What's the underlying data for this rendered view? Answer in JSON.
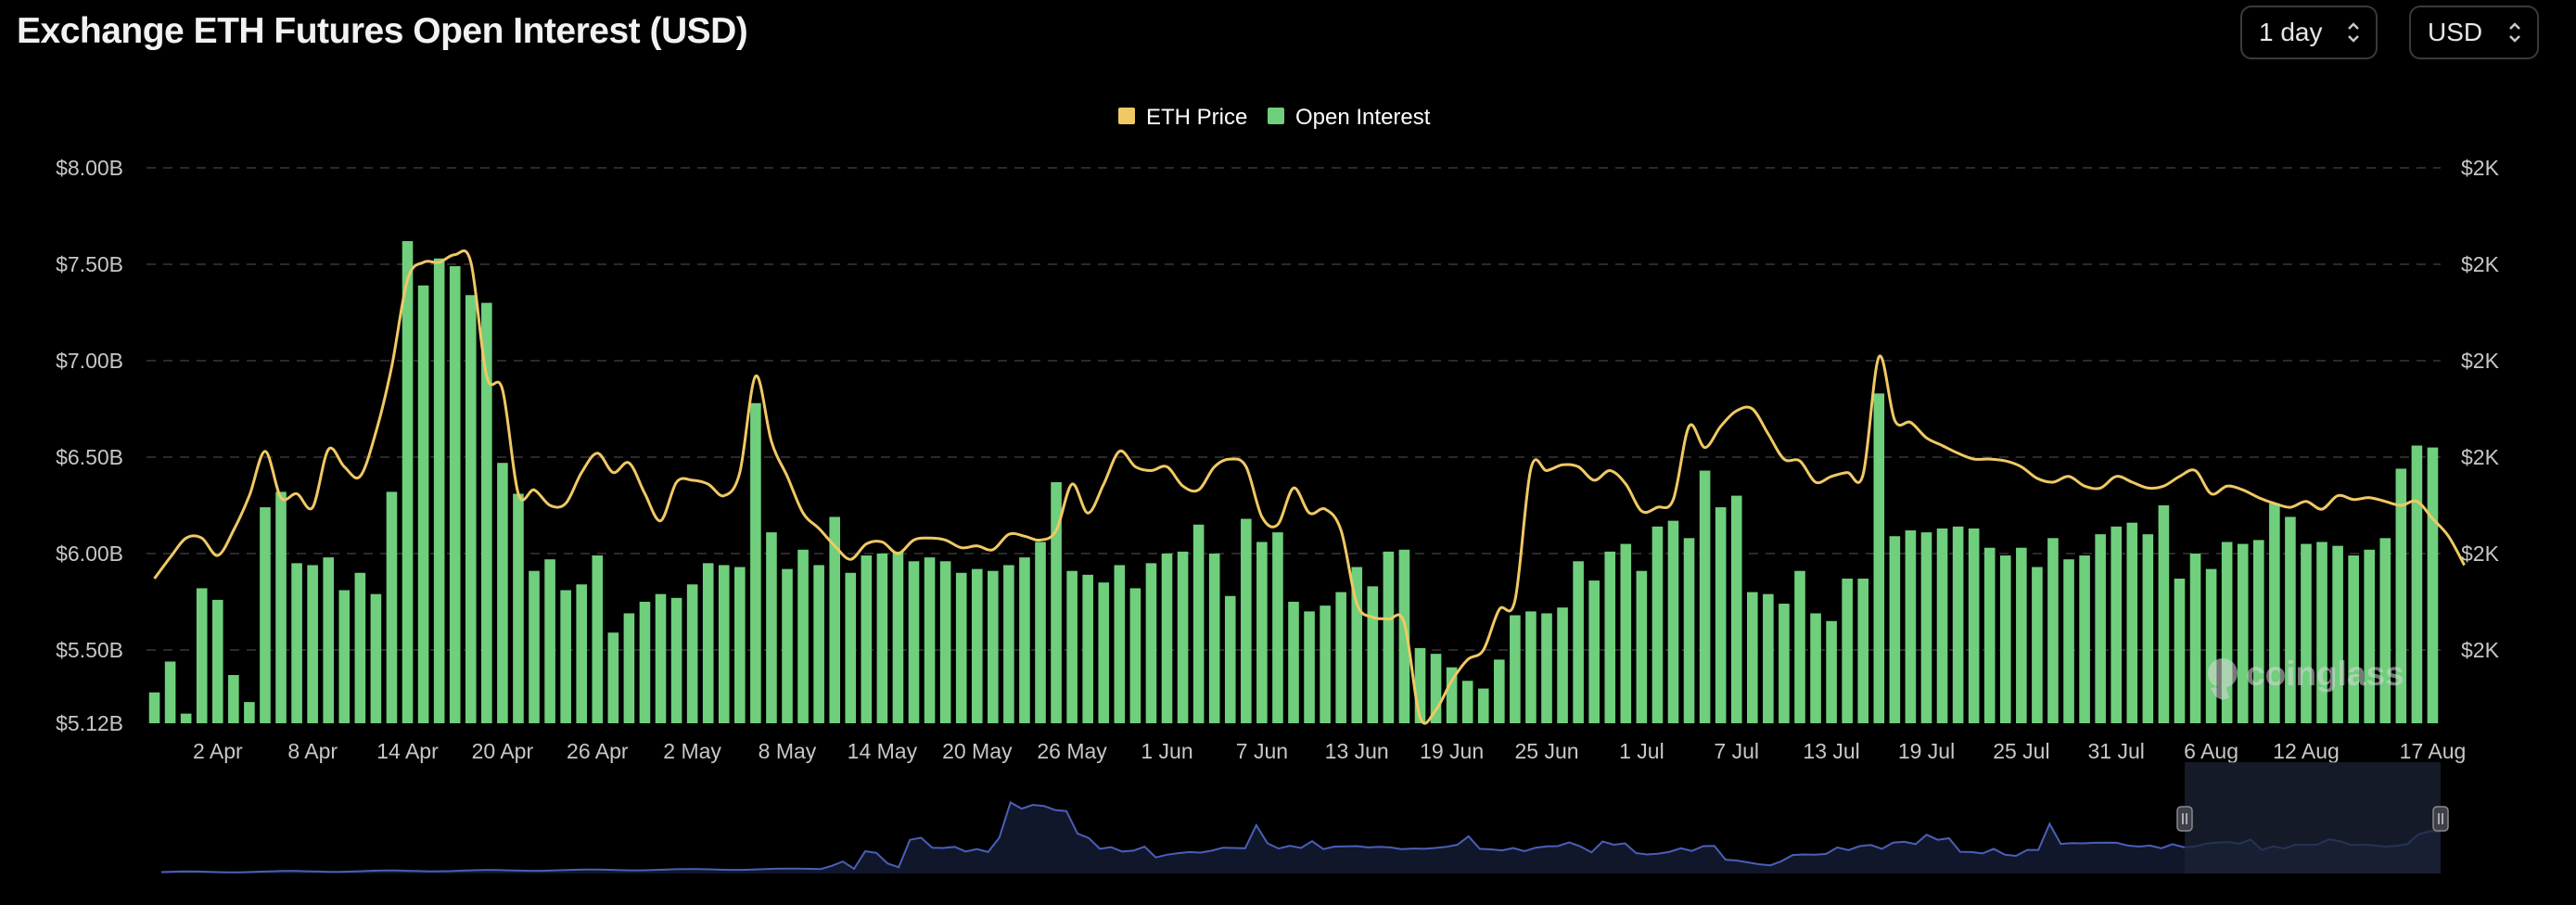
{
  "header": {
    "title": "Exchange ETH Futures Open Interest (USD)",
    "interval_value": "1 day",
    "currency_value": "USD"
  },
  "watermark": "coinglass",
  "colors": {
    "background": "#000000",
    "bar": "#6fcf7c",
    "price_line": "#f0c965",
    "grid": "#2a2a2a",
    "navigator_line": "#4a5fb8",
    "navigator_selection": "#1b2336"
  },
  "chart_data": {
    "type": "bar",
    "title": "Exchange ETH Futures Open Interest (USD)",
    "legend": [
      "ETH Price",
      "Open Interest"
    ],
    "legend_position": "top-center",
    "grid": true,
    "y_left_ticks": [
      "$8.00B",
      "$7.50B",
      "$7.00B",
      "$6.50B",
      "$6.00B",
      "$5.50B",
      "$5.12B"
    ],
    "y_right_ticks": [
      "$2K",
      "$2K",
      "$2K",
      "$2K",
      "$2K",
      "$2K"
    ],
    "ylim": [
      5.12,
      8.0
    ],
    "x_tick_labels": [
      "2 Apr",
      "8 Apr",
      "14 Apr",
      "20 Apr",
      "26 Apr",
      "2 May",
      "8 May",
      "14 May",
      "20 May",
      "26 May",
      "1 Jun",
      "7 Jun",
      "13 Jun",
      "19 Jun",
      "25 Jun",
      "1 Jul",
      "7 Jul",
      "13 Jul",
      "19 Jul",
      "25 Jul",
      "31 Jul",
      "6 Aug",
      "12 Aug",
      "17 Aug"
    ],
    "series": [
      {
        "name": "Open Interest",
        "unit": "USD billions",
        "values": [
          5.28,
          5.44,
          5.17,
          5.82,
          5.76,
          5.37,
          5.23,
          6.24,
          6.32,
          5.95,
          5.94,
          5.98,
          5.81,
          5.9,
          5.79,
          6.32,
          7.62,
          7.39,
          7.53,
          7.49,
          7.34,
          7.3,
          6.47,
          6.31,
          5.91,
          5.97,
          5.81,
          5.84,
          5.99,
          5.59,
          5.69,
          5.75,
          5.79,
          5.77,
          5.84,
          5.95,
          5.94,
          5.93,
          6.78,
          6.11,
          5.92,
          6.02,
          5.94,
          6.19,
          5.9,
          5.99,
          6.0,
          6.01,
          5.96,
          5.98,
          5.96,
          5.9,
          5.92,
          5.91,
          5.94,
          5.98,
          6.06,
          6.37,
          5.91,
          5.89,
          5.85,
          5.94,
          5.82,
          5.95,
          6.0,
          6.01,
          6.15,
          6.0,
          5.78,
          6.18,
          6.06,
          6.11,
          5.75,
          5.7,
          5.73,
          5.8,
          5.93,
          5.83,
          6.01,
          6.02,
          5.51,
          5.48,
          5.41,
          5.34,
          5.3,
          5.45,
          5.68,
          5.7,
          5.69,
          5.72,
          5.96,
          5.86,
          6.01,
          6.05,
          5.91,
          6.14,
          6.17,
          6.08,
          6.43,
          6.24,
          6.3,
          5.8,
          5.79,
          5.74,
          5.91,
          5.69,
          5.65,
          5.87,
          5.87,
          6.83,
          6.09,
          6.12,
          6.11,
          6.13,
          6.14,
          6.13,
          6.03,
          5.99,
          6.03,
          5.93,
          6.08,
          5.97,
          5.99,
          6.1,
          6.14,
          6.16,
          6.1,
          6.25,
          5.87,
          6.0,
          5.92,
          6.06,
          6.05,
          6.07,
          6.26,
          6.19,
          6.05,
          6.06,
          6.04,
          5.99,
          6.02,
          6.08,
          6.44,
          6.56,
          6.55
        ]
      },
      {
        "name": "ETH Price",
        "unit": "USD",
        "values": [
          5.87,
          5.98,
          6.08,
          6.08,
          5.99,
          6.12,
          6.3,
          6.53,
          6.29,
          6.31,
          6.24,
          6.54,
          6.45,
          6.4,
          6.63,
          6.97,
          7.42,
          7.51,
          7.51,
          7.55,
          7.51,
          6.92,
          6.85,
          6.31,
          6.33,
          6.25,
          6.26,
          6.42,
          6.52,
          6.42,
          6.47,
          6.31,
          6.17,
          6.37,
          6.38,
          6.36,
          6.3,
          6.42,
          6.92,
          6.58,
          6.4,
          6.21,
          6.13,
          6.04,
          5.97,
          6.05,
          6.06,
          6.0,
          6.07,
          6.08,
          6.07,
          6.03,
          6.04,
          6.02,
          6.1,
          6.09,
          6.07,
          6.12,
          6.36,
          6.21,
          6.36,
          6.53,
          6.45,
          6.43,
          6.45,
          6.35,
          6.33,
          6.45,
          6.49,
          6.45,
          6.19,
          6.15,
          6.34,
          6.21,
          6.23,
          6.12,
          5.74,
          5.67,
          5.66,
          5.64,
          5.15,
          5.19,
          5.34,
          5.45,
          5.5,
          5.71,
          5.76,
          6.44,
          6.43,
          6.46,
          6.45,
          6.38,
          6.43,
          6.36,
          6.22,
          6.24,
          6.28,
          6.66,
          6.55,
          6.66,
          6.74,
          6.75,
          6.62,
          6.49,
          6.48,
          6.37,
          6.4,
          6.42,
          6.41,
          7.02,
          6.69,
          6.68,
          6.6,
          6.56,
          6.52,
          6.49,
          6.49,
          6.48,
          6.45,
          6.39,
          6.37,
          6.4,
          6.35,
          6.34,
          6.4,
          6.37,
          6.34,
          6.35,
          6.4,
          6.43,
          6.31,
          6.35,
          6.33,
          6.29,
          6.26,
          6.24,
          6.27,
          6.23,
          6.3,
          6.28,
          6.29,
          6.27,
          6.25,
          6.27,
          6.18,
          6.09,
          5.94
        ]
      }
    ]
  }
}
